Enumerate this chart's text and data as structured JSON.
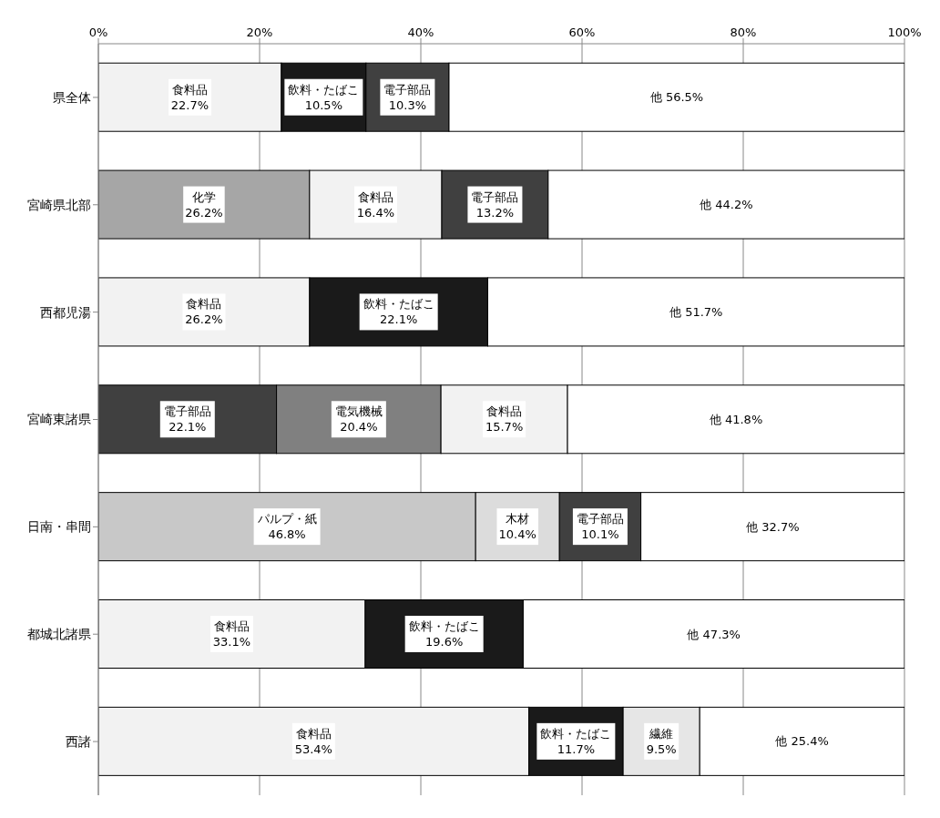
{
  "chart_data": {
    "type": "bar",
    "orientation": "horizontal",
    "stacked": true,
    "categories": [
      "県全体",
      "宮崎県北部",
      "西都児湯",
      "宮崎東諸県",
      "日南・串間",
      "都城北諸県",
      "西諸"
    ],
    "series": [
      {
        "colors": [
          "#f2f2f2",
          "#a6a6a6",
          "#f2f2f2",
          "#404040",
          "#c8c8c8",
          "#f2f2f2",
          "#f2f2f2"
        ],
        "values": [
          22.7,
          26.2,
          26.2,
          22.1,
          46.8,
          33.1,
          53.4
        ],
        "value_labels": [
          "食料品\n22.7%",
          "化学\n26.2%",
          "食料品\n26.2%",
          "電子部品\n22.1%",
          "パルプ・紙\n46.8%",
          "食料品\n33.1%",
          "食料品\n53.4%"
        ]
      },
      {
        "colors": [
          "#1a1a1a",
          "#f2f2f2",
          "#1a1a1a",
          "#808080",
          "#dcdcdc",
          "#1a1a1a",
          "#1a1a1a"
        ],
        "values": [
          10.5,
          16.4,
          22.1,
          20.4,
          10.4,
          19.6,
          11.7
        ],
        "value_labels": [
          "飲料・たばこ\n10.5%",
          "食料品\n16.4%",
          "飲料・たばこ\n22.1%",
          "電気機械\n20.4%",
          "木材\n10.4%",
          "飲料・たばこ\n19.6%",
          "飲料・たばこ\n11.7%"
        ]
      },
      {
        "colors": [
          "#404040",
          "#404040",
          "#ffffff",
          "#f2f2f2",
          "#404040",
          "#ffffff",
          "#e6e6e6"
        ],
        "values": [
          10.3,
          13.2,
          null,
          15.7,
          10.1,
          null,
          9.5
        ],
        "value_labels": [
          "電子部品\n10.3%",
          "電子部品\n13.2%",
          null,
          "食料品\n15.7%",
          "電子部品\n10.1%",
          null,
          "繊維\n9.5%"
        ]
      },
      {
        "colors": [
          "#ffffff",
          "#ffffff",
          "#ffffff",
          "#ffffff",
          "#ffffff",
          "#ffffff",
          "#ffffff"
        ],
        "values": [
          56.5,
          44.2,
          51.7,
          41.8,
          32.7,
          47.3,
          25.4
        ],
        "value_labels": [
          "他 56.5%",
          "他 44.2%",
          "他 51.7%",
          "他 41.8%",
          "他 32.7%",
          "他 47.3%",
          "他 25.4%"
        ]
      }
    ],
    "xlim": [
      0,
      100
    ],
    "xticks": [
      {
        "value": 0,
        "label": "0%"
      },
      {
        "value": 20,
        "label": "20%"
      },
      {
        "value": 40,
        "label": "40%"
      },
      {
        "value": 60,
        "label": "60%"
      },
      {
        "value": 80,
        "label": "80%"
      },
      {
        "value": 100,
        "label": "100%"
      }
    ],
    "grid": "x",
    "legend": false
  }
}
